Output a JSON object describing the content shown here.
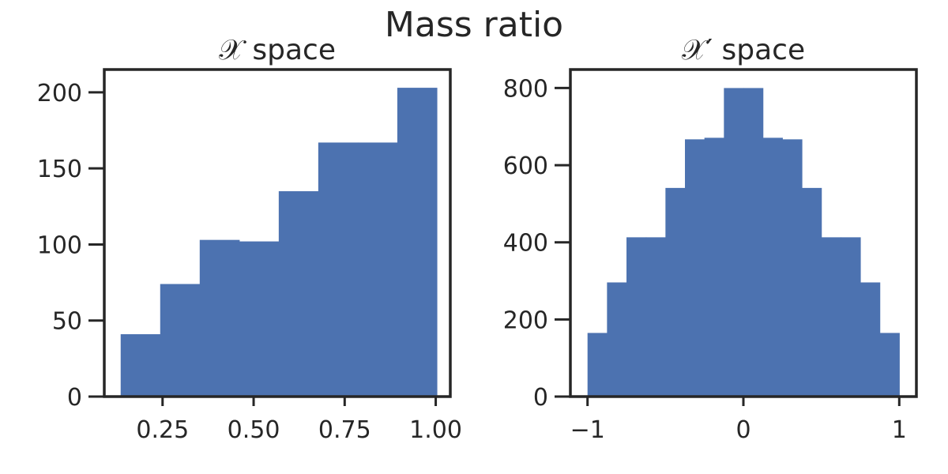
{
  "figure": {
    "title": "Mass ratio"
  },
  "chart_data": [
    {
      "type": "bar",
      "title": "𝒳 space",
      "xlabel": "",
      "ylabel": "",
      "bar_color": "#4c72b0",
      "xlim": [
        0.09,
        1.04
      ],
      "ylim": [
        0,
        215
      ],
      "xticks": [
        0.25,
        0.5,
        0.75,
        1.0
      ],
      "xtick_labels": [
        "0.25",
        "0.50",
        "0.75",
        "1.00"
      ],
      "yticks": [
        0,
        50,
        100,
        150,
        200
      ],
      "ytick_labels": [
        "0",
        "50",
        "100",
        "150",
        "200"
      ],
      "bin_edges": [
        0.135,
        0.2435,
        0.352,
        0.4605,
        0.569,
        0.6775,
        0.786,
        0.8945,
        1.003
      ],
      "values": [
        41,
        74,
        103,
        102,
        135,
        167,
        167,
        203
      ]
    },
    {
      "type": "bar",
      "title": "𝒳′ space",
      "xlabel": "",
      "ylabel": "",
      "bar_color": "#4c72b0",
      "xlim": [
        -1.11,
        1.11
      ],
      "ylim": [
        0,
        848
      ],
      "xticks": [
        -1,
        0,
        1
      ],
      "xtick_labels": [
        "−1",
        "0",
        "1"
      ],
      "yticks": [
        0,
        200,
        400,
        600,
        800
      ],
      "ytick_labels": [
        "0",
        "200",
        "400",
        "600",
        "800"
      ],
      "bin_edges": [
        -1.0,
        -0.875,
        -0.75,
        -0.625,
        -0.5,
        -0.375,
        -0.25,
        -0.125,
        0.0,
        0.125,
        0.25,
        0.375,
        0.5,
        0.625,
        0.75,
        0.875,
        1.0
      ],
      "values": [
        165,
        296,
        413,
        413,
        541,
        667,
        671,
        800,
        800,
        671,
        667,
        541,
        413,
        413,
        296,
        165
      ]
    }
  ]
}
